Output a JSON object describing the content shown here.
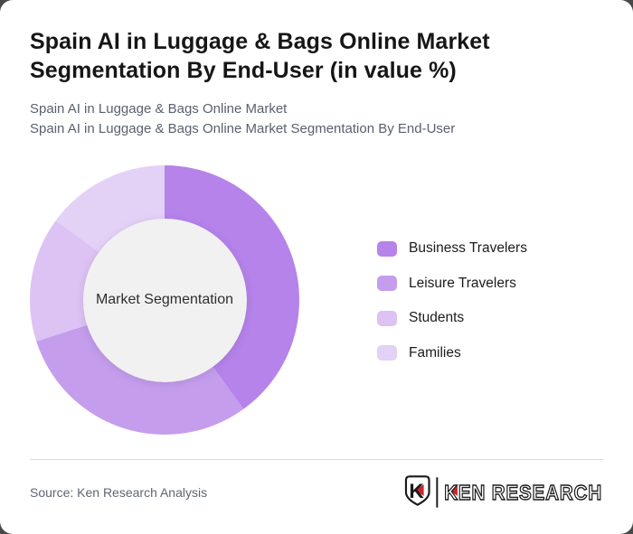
{
  "header": {
    "title": "Spain AI in Luggage & Bags Online Market Segmentation By End-User (in value %)",
    "subtitle_line1": "Spain AI in Luggage & Bags Online Market",
    "subtitle_line2": "Spain AI in Luggage & Bags Online Market Segmentation By End-User"
  },
  "chart_data": {
    "type": "pie",
    "variant": "donut",
    "title": "Spain AI in Luggage & Bags Online Market Segmentation By End-User (in value %)",
    "center_label": "Market Segmentation",
    "categories": [
      "Business Travelers",
      "Leisure Travelers",
      "Students",
      "Families"
    ],
    "values": [
      40,
      30,
      15,
      15
    ],
    "unit": "% of value (estimated from segment angles, no data labels shown)",
    "colors": [
      "#b583ea",
      "#c59ded",
      "#ddc2f4",
      "#e3d1f6"
    ],
    "hole_color": "#f1f1f2",
    "legend_position": "right",
    "start_angle_deg": 0,
    "direction": "clockwise",
    "data_labels_shown": false
  },
  "footer": {
    "source_text": "Source: Ken Research Analysis",
    "logo": {
      "emblem_letter": "K",
      "wordmark": "KEN RESEARCH",
      "accent_color": "#c9252c",
      "ink_color": "#1a1a1a"
    }
  }
}
